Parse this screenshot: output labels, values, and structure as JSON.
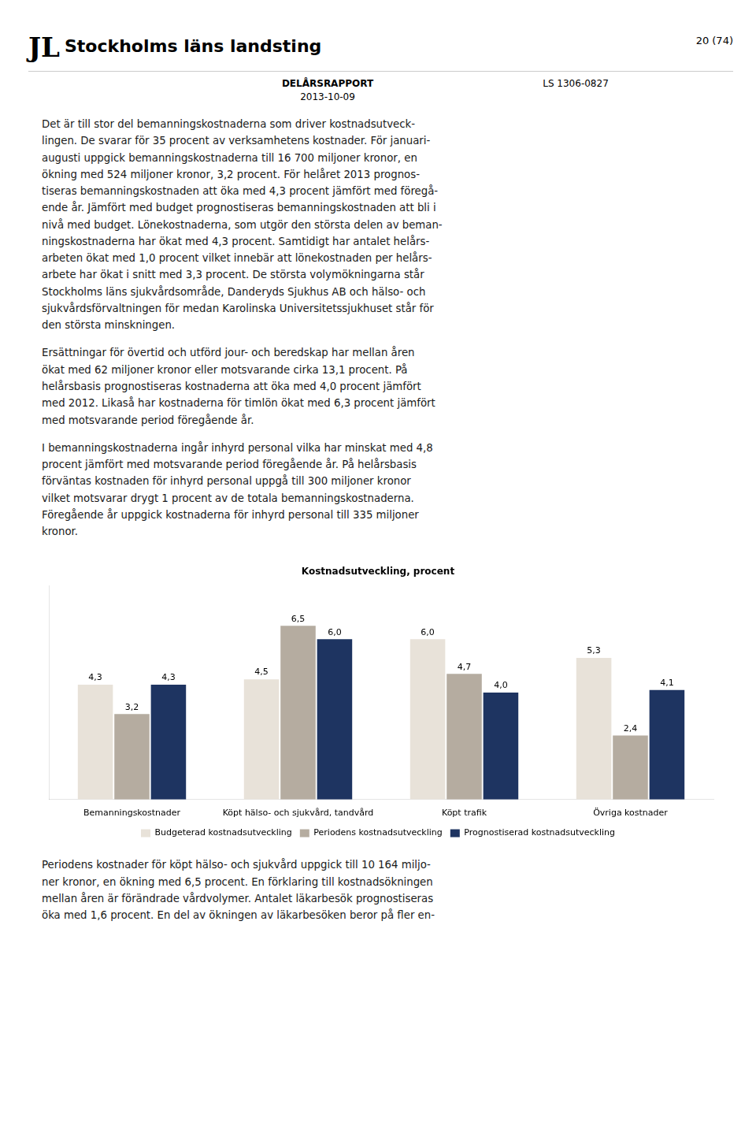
{
  "chart_data": {
    "type": "bar",
    "title": "Kostnadsutveckling, procent",
    "categories": [
      "Bemanningskostnader",
      "Köpt hälso- och sjukvård, tandvård",
      "Köpt trafik",
      "Övriga kostnader"
    ],
    "series": [
      {
        "name": "Budgeterad kostnadsutveckling",
        "color": "#e8e2d9",
        "values": [
          4.3,
          4.5,
          6.0,
          5.3
        ],
        "value_labels": [
          "4,3",
          "4,5",
          "6,0",
          "5,3"
        ]
      },
      {
        "name": "Periodens kostnadsutveckling",
        "color": "#b5aca0",
        "values": [
          3.2,
          6.5,
          4.7,
          2.4
        ],
        "value_labels": [
          "3,2",
          "6,5",
          "4,7",
          "2,4"
        ]
      },
      {
        "name": "Prognostiserad kostnadsutveckling",
        "color": "#1e3461",
        "values": [
          4.3,
          6.0,
          4.0,
          4.1
        ],
        "value_labels": [
          "4,3",
          "6,0",
          "4,0",
          "4,1"
        ]
      }
    ],
    "ylim": [
      0,
      8
    ],
    "data_labels": true,
    "tick_labels": "x",
    "grid": false,
    "legend": "bottom",
    "annotations": [
      "JL",
      "Stockholms läns landsting",
      "20 (74)",
      "DELÅRSRAPPORT",
      "2013-10-09",
      "LS 1306-0827",
      "Det är till stor del bemanningskostnaderna som driver kostnadsutveck-\nlingen. De svarar för 35 procent av verksamhetens kostnader. För januari-\naugusti uppgick bemanningskostnaderna till 16 700 miljoner kronor, en\nökning med 524 miljoner kronor, 3,2 procent. För helåret 2013 prognos-\ntiseras bemanningskostnaden att öka med 4,3 procent jämfört med föregå-\nende år. Jämfört med budget prognostiseras bemanningskostnaden att bli i\nnivå med budget. Lönekostnaderna, som utgör den största delen av beman-\nningskostnaderna har ökat med 4,3 procent. Samtidigt har antalet helårs-\narbeten ökat med 1,0 procent vilket innebär att lönekostnaden per helårs-\narbete har ökat i snitt med 3,3 procent. De största volymökningarna står\nStockholms läns sjukvårdsområde, Danderyds Sjukhus AB och hälso- och\nsjukvårdsförvaltningen för medan Karolinska Universitetssjukhuset står för\nden största minskningen.",
      "Ersättningar för övertid och utförd jour- och beredskap har mellan åren\nökat med 62 miljoner kronor eller motsvarande cirka 13,1 procent. På\nhelårsbasis prognostiseras kostnaderna att öka med 4,0 procent jämfört\nmed 2012. Likaså har kostnaderna för timlön ökat med 6,3 procent jämfört\nmed motsvarande period föregående år.",
      "I bemanningskostnaderna ingår inhyrd personal vilka har minskat med 4,8\nprocent jämfört med motsvarande period föregående år. På helårsbasis\nförväntas kostnaden för inhyrd personal uppgå till 300 miljoner kronor\nvilket motsvarar drygt 1 procent av de totala bemanningskostnaderna.\nFöregående år uppgick kostnaderna för inhyrd personal till 335 miljoner\nkronor.",
      "Periodens kostnader för köpt hälso- och sjukvård uppgick till 10 164 miljo-\nner kronor, en ökning med 6,5 procent. En förklaring till kostnadsökningen\nmellan åren är förändrade vårdvolymer. Antalet läkarbesök prognostiseras\nöka med 1,6 procent. En del av ökningen av läkarbesöken beror på fler en-"
    ]
  }
}
